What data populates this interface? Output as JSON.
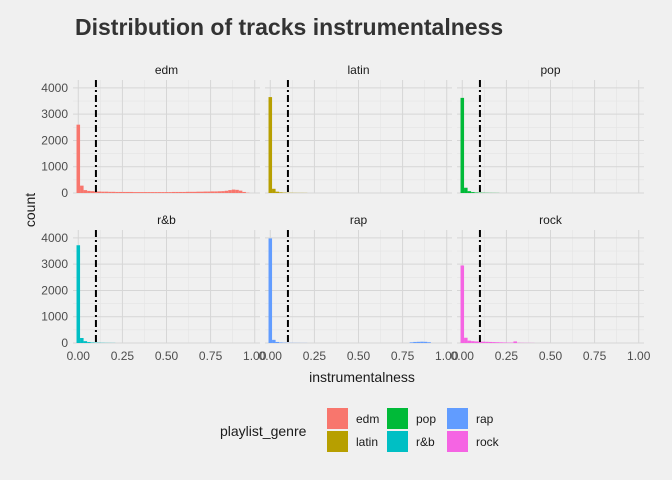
{
  "chart_data": {
    "type": "bar",
    "subtype": "faceted-histogram",
    "title": "Distribution of tracks instrumentalness",
    "xlabel": "instrumentalness",
    "ylabel": "count",
    "facet_by": "playlist_genre",
    "facet_layout": {
      "rows": 2,
      "cols": 3
    },
    "xlim": [
      -0.03,
      1.03
    ],
    "ylim": [
      0,
      4300
    ],
    "x_ticks": [
      0.0,
      0.25,
      0.5,
      0.75,
      1.0
    ],
    "x_tick_labels": [
      "0.00",
      "0.25",
      "0.50",
      "0.75",
      "1.00"
    ],
    "y_ticks": [
      0,
      1000,
      2000,
      3000,
      4000
    ],
    "y_tick_labels": [
      "0",
      "1000",
      "2000",
      "3000",
      "4000"
    ],
    "bin_width": 0.02,
    "vline": {
      "x": 0.1,
      "color": "#000000",
      "style": "dotdash"
    },
    "grid": true,
    "legend": {
      "title": "playlist_genre",
      "position": "bottom",
      "entries": [
        {
          "label": "edm",
          "color": "#F8766D"
        },
        {
          "label": "latin",
          "color": "#B79F00"
        },
        {
          "label": "pop",
          "color": "#00BA38"
        },
        {
          "label": "r&b",
          "color": "#00BFC4"
        },
        {
          "label": "rap",
          "color": "#619CFF"
        },
        {
          "label": "rock",
          "color": "#F564E3"
        }
      ]
    },
    "series": [
      {
        "name": "edm",
        "color": "#F8766D",
        "bins": [
          [
            0.0,
            2600
          ],
          [
            0.02,
            280
          ],
          [
            0.04,
            110
          ],
          [
            0.06,
            80
          ],
          [
            0.08,
            70
          ],
          [
            0.1,
            60
          ],
          [
            0.12,
            55
          ],
          [
            0.14,
            50
          ],
          [
            0.16,
            50
          ],
          [
            0.18,
            45
          ],
          [
            0.2,
            45
          ],
          [
            0.22,
            40
          ],
          [
            0.24,
            40
          ],
          [
            0.26,
            40
          ],
          [
            0.28,
            40
          ],
          [
            0.3,
            40
          ],
          [
            0.32,
            35
          ],
          [
            0.34,
            35
          ],
          [
            0.36,
            35
          ],
          [
            0.38,
            35
          ],
          [
            0.4,
            35
          ],
          [
            0.42,
            35
          ],
          [
            0.44,
            35
          ],
          [
            0.46,
            35
          ],
          [
            0.48,
            35
          ],
          [
            0.5,
            35
          ],
          [
            0.52,
            35
          ],
          [
            0.54,
            40
          ],
          [
            0.56,
            40
          ],
          [
            0.58,
            40
          ],
          [
            0.6,
            40
          ],
          [
            0.62,
            45
          ],
          [
            0.64,
            45
          ],
          [
            0.66,
            45
          ],
          [
            0.68,
            50
          ],
          [
            0.7,
            50
          ],
          [
            0.72,
            55
          ],
          [
            0.74,
            55
          ],
          [
            0.76,
            60
          ],
          [
            0.78,
            60
          ],
          [
            0.8,
            65
          ],
          [
            0.82,
            70
          ],
          [
            0.84,
            85
          ],
          [
            0.86,
            110
          ],
          [
            0.88,
            130
          ],
          [
            0.9,
            120
          ],
          [
            0.92,
            90
          ],
          [
            0.94,
            40
          ],
          [
            0.96,
            10
          ]
        ]
      },
      {
        "name": "latin",
        "color": "#B79F00",
        "bins": [
          [
            0.0,
            3650
          ],
          [
            0.02,
            160
          ],
          [
            0.04,
            50
          ],
          [
            0.06,
            25
          ],
          [
            0.08,
            15
          ],
          [
            0.1,
            10
          ],
          [
            0.12,
            8
          ],
          [
            0.14,
            6
          ],
          [
            0.16,
            5
          ],
          [
            0.18,
            5
          ],
          [
            0.2,
            4
          ]
        ]
      },
      {
        "name": "pop",
        "color": "#00BA38",
        "bins": [
          [
            0.0,
            3620
          ],
          [
            0.02,
            200
          ],
          [
            0.04,
            70
          ],
          [
            0.06,
            35
          ],
          [
            0.08,
            20
          ],
          [
            0.1,
            15
          ],
          [
            0.12,
            10
          ],
          [
            0.14,
            8
          ],
          [
            0.16,
            6
          ],
          [
            0.18,
            5
          ],
          [
            0.2,
            4
          ]
        ]
      },
      {
        "name": "r&b",
        "color": "#00BFC4",
        "bins": [
          [
            0.0,
            3720
          ],
          [
            0.02,
            190
          ],
          [
            0.04,
            70
          ],
          [
            0.06,
            35
          ],
          [
            0.08,
            20
          ],
          [
            0.1,
            15
          ],
          [
            0.12,
            10
          ],
          [
            0.14,
            8
          ],
          [
            0.16,
            6
          ],
          [
            0.18,
            5
          ],
          [
            0.2,
            4
          ]
        ]
      },
      {
        "name": "rap",
        "color": "#619CFF",
        "bins": [
          [
            0.0,
            3980
          ],
          [
            0.02,
            120
          ],
          [
            0.04,
            40
          ],
          [
            0.06,
            20
          ],
          [
            0.08,
            12
          ],
          [
            0.1,
            8
          ],
          [
            0.12,
            6
          ],
          [
            0.14,
            5
          ],
          [
            0.16,
            4
          ],
          [
            0.18,
            3
          ],
          [
            0.2,
            3
          ],
          [
            0.8,
            25
          ],
          [
            0.82,
            40
          ],
          [
            0.84,
            45
          ],
          [
            0.86,
            50
          ],
          [
            0.88,
            45
          ],
          [
            0.9,
            30
          ]
        ]
      },
      {
        "name": "rock",
        "color": "#F564E3",
        "bins": [
          [
            0.0,
            2950
          ],
          [
            0.02,
            200
          ],
          [
            0.04,
            90
          ],
          [
            0.06,
            70
          ],
          [
            0.08,
            60
          ],
          [
            0.1,
            55
          ],
          [
            0.12,
            50
          ],
          [
            0.14,
            45
          ],
          [
            0.16,
            40
          ],
          [
            0.18,
            35
          ],
          [
            0.2,
            30
          ],
          [
            0.22,
            25
          ],
          [
            0.24,
            20
          ],
          [
            0.26,
            15
          ],
          [
            0.28,
            15
          ],
          [
            0.3,
            60
          ],
          [
            0.32,
            10
          ],
          [
            0.34,
            8
          ],
          [
            0.36,
            6
          ],
          [
            0.38,
            5
          ],
          [
            0.4,
            4
          ]
        ]
      }
    ]
  }
}
